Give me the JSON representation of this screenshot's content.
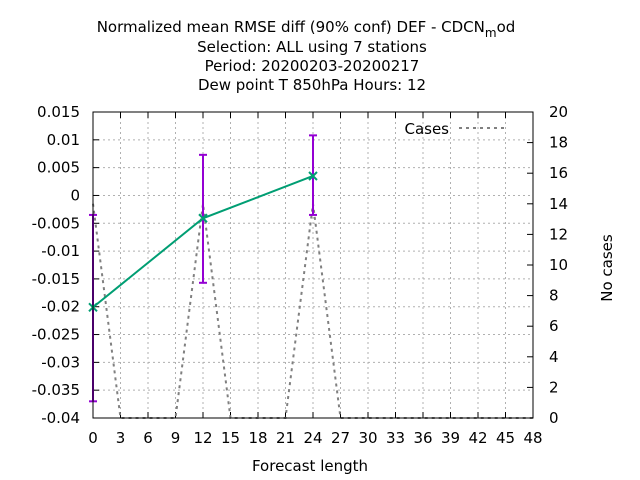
{
  "chart_data": {
    "type": "line",
    "title_lines": [
      "Normalized mean RMSE diff (90% conf) DEF - CDCN",
      "Selection: ALL using     7 stations",
      "Period: 20200203-20200217",
      "Dew point T 850hPa   Hours:  12"
    ],
    "title_suffix_sub": "m",
    "title_suffix_rest": "od",
    "xlabel": "Forecast length",
    "y2label": "No cases",
    "xlim": [
      0,
      48
    ],
    "ylim": [
      -0.04,
      0.015
    ],
    "y2lim": [
      0,
      20
    ],
    "xticks": [
      "0",
      "3",
      "6",
      "9",
      "12",
      "15",
      "18",
      "21",
      "24",
      "27",
      "30",
      "33",
      "36",
      "39",
      "42",
      "45",
      "48"
    ],
    "yticks": [
      "0.015",
      "0.01",
      "0.005",
      "0",
      "-0.005",
      "-0.01",
      "-0.015",
      "-0.02",
      "-0.025",
      "-0.03",
      "-0.035",
      "-0.04"
    ],
    "y2ticks": [
      "20",
      "18",
      "16",
      "14",
      "12",
      "10",
      "8",
      "6",
      "4",
      "2",
      "0"
    ],
    "grid": true,
    "legend_position": "top-right",
    "series": [
      {
        "color": "#009e73",
        "error_color": "#9400d3",
        "points": [
          {
            "x": 0,
            "y": -0.0201,
            "low": -0.037,
            "high": -0.0035
          },
          {
            "x": 12,
            "y": -0.0041,
            "low": -0.0157,
            "high": 0.0073
          },
          {
            "x": 24,
            "y": 0.0035,
            "low": -0.0035,
            "high": 0.0108
          }
        ]
      },
      {
        "name": "Cases",
        "axis": "y2",
        "color": "#808080",
        "dashed": true,
        "x": [
          0,
          3,
          9,
          12,
          15,
          21,
          24,
          27,
          48
        ],
        "values": [
          14,
          0,
          0,
          14,
          0,
          0,
          14,
          0,
          0
        ]
      }
    ]
  }
}
